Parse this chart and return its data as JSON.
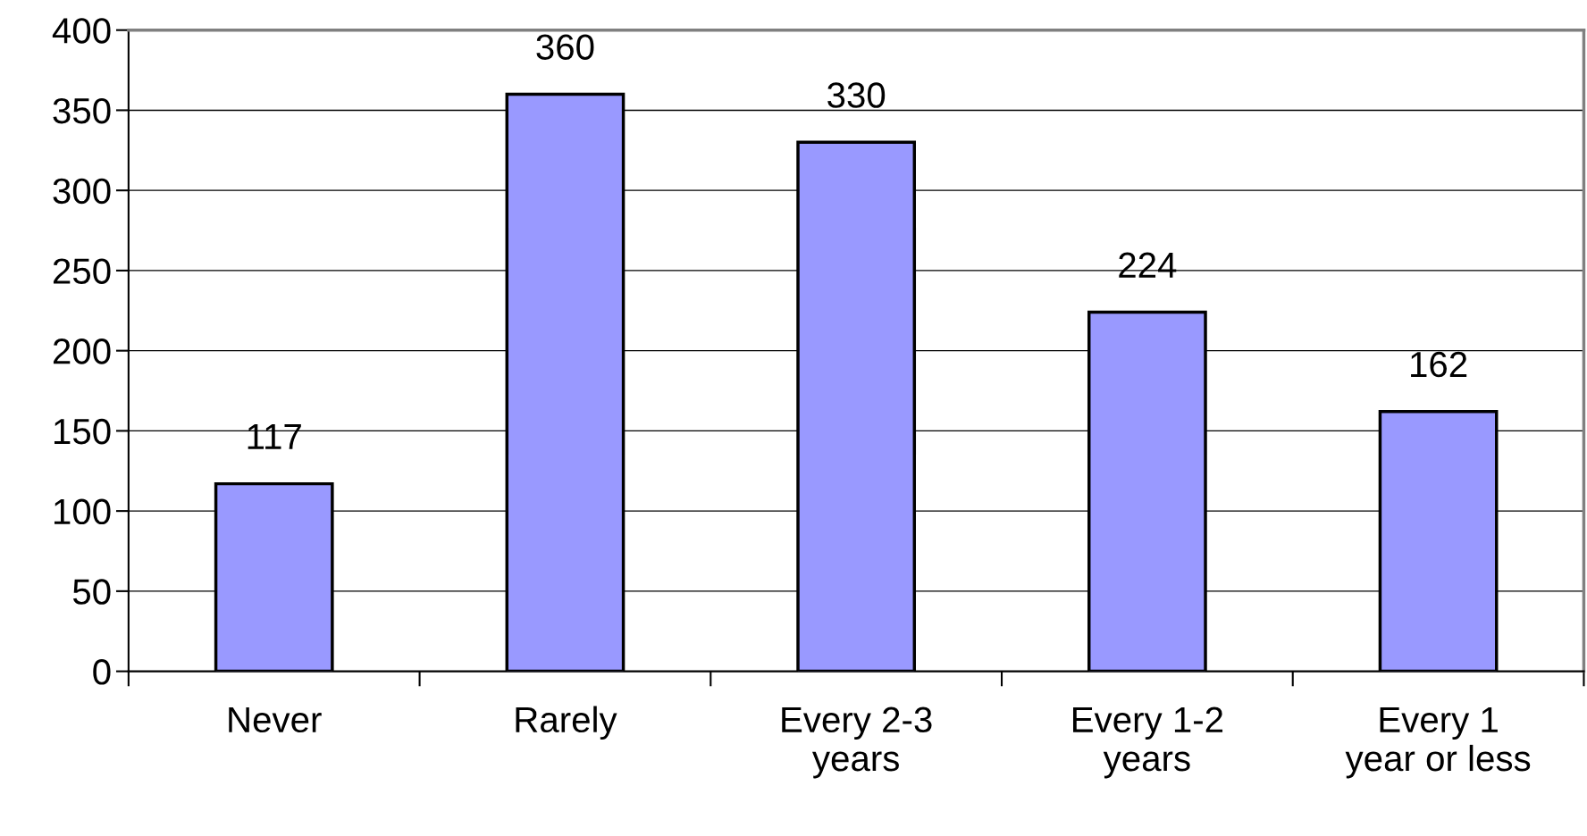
{
  "chart_data": {
    "type": "bar",
    "categories": [
      "Never",
      "Rarely",
      "Every 2-3\nyears",
      "Every 1-2\nyears",
      "Every 1\nyear or less"
    ],
    "values": [
      117,
      360,
      330,
      224,
      162
    ],
    "color": "#9999ff",
    "data_labels": true,
    "ylim": [
      0,
      400
    ],
    "yticks": [
      0,
      50,
      100,
      150,
      200,
      250,
      300,
      350,
      400
    ],
    "grid": "y",
    "legend": false
  }
}
